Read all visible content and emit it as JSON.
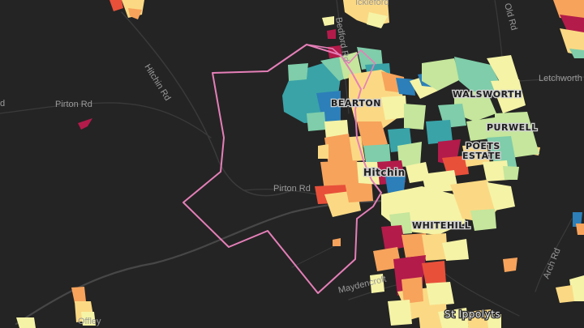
{
  "map": {
    "colors": {
      "background": "#242424",
      "road": "#3a3a3a",
      "boundary": "#e57fb8",
      "palette": [
        "#b31b4a",
        "#e8503a",
        "#f7a35c",
        "#fbd984",
        "#f5f3a6",
        "#c5e69c",
        "#7fcdaa",
        "#3aa3a8",
        "#2c7fb8"
      ]
    },
    "roads": {
      "hitchin_rd": "Hitchin Rd",
      "pirton_rd_west": "Pirton Rd",
      "pirton_rd_east": "Pirton Rd",
      "bedford_rd": "Bedford Rd",
      "letchworth": "Letchworth",
      "arch_rd": "Arch Rd",
      "maydencroft": "Maydencroft",
      "old_rd": "Old Rd",
      "top_label": "Ickleford",
      "left_edge": "d",
      "bottom_left": "Offley"
    },
    "places": {
      "walsworth": "WALSWORTH",
      "bearton": "BEARTON",
      "purwell": "PURWELL",
      "poets_estate": "POETS ESTATE",
      "hitchin": "Hitchin",
      "whitehill": "WHITEHILL",
      "st_ippolyts": "St Ippolyts"
    }
  }
}
